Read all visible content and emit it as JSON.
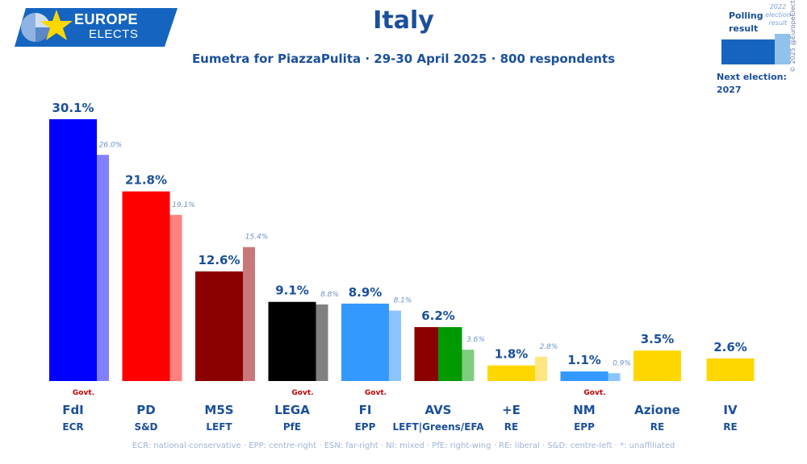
{
  "header": {
    "logo_line1": "EUROPE",
    "logo_line2": "ELECTS",
    "title": "Italy",
    "subtitle": "Eumetra for PiazzaPulita · 29-30 April 2025 · 800 respondents"
  },
  "legend": {
    "polling_result": "Polling result",
    "previous_result": "2022 election result",
    "next_election_label": "Next election:",
    "next_election_year": "2027",
    "copyright": "© 2025 @EuropeElects"
  },
  "footer": "ECR: national-conservative · EPP: centre-right · ESN: far-right · NI: mixed · PfE: right-wing · RE: liberal · S&D: centre-left · *: unaffiliated",
  "colors": {
    "brand_blue": "#1a4f9c",
    "govt_red": "#c00000"
  },
  "chart_data": {
    "type": "bar",
    "title": "Italy",
    "subtitle": "Eumetra for PiazzaPulita · 29-30 April 2025 · 800 respondents",
    "categories": [
      "FdI",
      "PD",
      "M5S",
      "LEGA",
      "FI",
      "AVS",
      "+E",
      "NM",
      "Azione",
      "IV"
    ],
    "groups": [
      "ECR",
      "S&D",
      "LEFT",
      "PfE",
      "EPP",
      "LEFT|Greens/EFA",
      "RE",
      "EPP",
      "RE",
      "RE"
    ],
    "series": [
      {
        "name": "Polling result",
        "values": [
          30.1,
          21.8,
          12.6,
          9.1,
          8.9,
          6.2,
          1.8,
          1.1,
          3.5,
          2.6
        ],
        "labels": [
          "30.1%",
          "21.8%",
          "12.6%",
          "9.1%",
          "8.9%",
          "6.2%",
          "1.8%",
          "1.1%",
          "3.5%",
          "2.6%"
        ]
      },
      {
        "name": "2022 election result",
        "values": [
          26.0,
          19.1,
          15.4,
          8.8,
          8.1,
          3.6,
          2.8,
          0.9,
          null,
          null
        ],
        "labels": [
          "26.0%",
          "19.1%",
          "15.4%",
          "8.8%",
          "8.1%",
          "3.6%",
          "2.8%",
          "0.9%",
          "",
          ""
        ]
      }
    ],
    "govt": [
      true,
      false,
      false,
      true,
      true,
      false,
      false,
      true,
      false,
      false
    ],
    "govt_label": "Govt.",
    "colors": [
      [
        "#0000ff"
      ],
      [
        "#ff0000"
      ],
      [
        "#8b0000"
      ],
      [
        "#000000"
      ],
      [
        "#3399ff"
      ],
      [
        "#8b0000",
        "#009900"
      ],
      [
        "#ffd700"
      ],
      [
        "#3399ff"
      ],
      [
        "#ffd700"
      ],
      [
        "#ffd700"
      ]
    ],
    "prev_colors": [
      "#8080ff",
      "#ff8080",
      "#c87878",
      "#808080",
      "#8cc4ff",
      "#80cc80",
      "#ffe680",
      "#8cc4ff",
      "",
      ""
    ],
    "ylim": [
      0,
      32
    ],
    "grid": false,
    "legend": "top-right"
  }
}
